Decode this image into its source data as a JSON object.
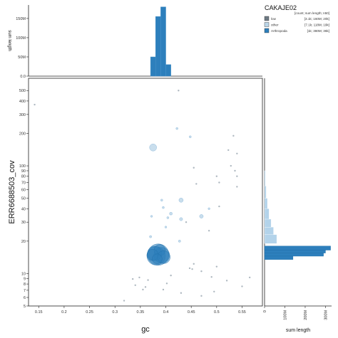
{
  "chart_data": {
    "type": "scatter",
    "xlabel": "gc",
    "ylabel": "ERR6688503_cov",
    "x_ticks": [
      "0.15",
      "0.2",
      "0.25",
      "0.3",
      "0.35",
      "0.4",
      "0.45",
      "0.5",
      "0.55"
    ],
    "x_tick_values": [
      0.15,
      0.2,
      0.25,
      0.3,
      0.35,
      0.4,
      0.45,
      0.5,
      0.55
    ],
    "xlim": [
      0.13,
      0.59
    ],
    "y_scale": "log",
    "ylim": [
      5,
      650
    ],
    "y_ticks": [
      "5",
      "6",
      "7",
      "8",
      "9",
      "10",
      "20",
      "30",
      "40",
      "50",
      "60",
      "70",
      "80",
      "90",
      "100",
      "200",
      "300",
      "400",
      "500"
    ],
    "y_tick_values": [
      5,
      6,
      7,
      8,
      9,
      10,
      20,
      30,
      40,
      50,
      60,
      70,
      80,
      90,
      100,
      200,
      300,
      400,
      500
    ],
    "top_hist": {
      "ylabel": "sum length",
      "y_ticks": [
        "0.0",
        "50M",
        "100M",
        "150M"
      ],
      "y_tick_values": [
        0,
        50000000,
        100000000,
        150000000
      ],
      "ylim": [
        0,
        185000000
      ],
      "bins_gc": [
        0.37,
        0.38,
        0.39,
        0.4
      ],
      "bin_width": 0.01,
      "values": [
        50000000,
        155000000,
        180000000,
        30000000
      ]
    },
    "right_hist": {
      "xlabel": "sum length",
      "x_ticks": [
        "0",
        "100M",
        "200M",
        "300M"
      ],
      "x_tick_values": [
        0,
        100000000,
        200000000,
        300000000
      ],
      "xlim": [
        0,
        330000000
      ],
      "light_bins": [
        {
          "cov": [
            19,
            23
          ],
          "value": 60000000
        },
        {
          "cov": [
            23,
            27
          ],
          "value": 44000000
        },
        {
          "cov": [
            27,
            32
          ],
          "value": 32000000
        },
        {
          "cov": [
            32,
            40
          ],
          "value": 22000000
        },
        {
          "cov": [
            40,
            50
          ],
          "value": 14000000
        },
        {
          "cov": [
            50,
            65
          ],
          "value": 8000000
        },
        {
          "cov": [
            65,
            90
          ],
          "value": 4000000
        }
      ],
      "dark_bins": [
        {
          "cov": [
            16.5,
            18
          ],
          "value": 325000000
        },
        {
          "cov": [
            15.5,
            16.5
          ],
          "value": 300000000
        },
        {
          "cov": [
            14.5,
            15.5
          ],
          "value": 290000000
        },
        {
          "cov": [
            13.5,
            14.5
          ],
          "value": 140000000
        }
      ]
    },
    "legend": {
      "title": "CAKAJE02",
      "header": "[count; sum length; n50]",
      "entries": [
        {
          "name": "low",
          "stats": "[3.1k; 160M; 20k]",
          "color": "#6e7a84"
        },
        {
          "name": "other",
          "stats": "[7.1k; 118M; 19k]",
          "color": "#bcd6e8"
        },
        {
          "name": "Arthropoda",
          "stats": "[1k; 380M; 36k]",
          "color": "#2d7fbc"
        }
      ]
    },
    "series": [
      {
        "name": "Arthropoda",
        "color": "#2d7fbc",
        "points": [
          {
            "x": 0.385,
            "y": 15.0,
            "r": 15
          },
          {
            "x": 0.381,
            "y": 14.6,
            "r": 13
          },
          {
            "x": 0.392,
            "y": 14.8,
            "r": 11
          },
          {
            "x": 0.378,
            "y": 15.4,
            "r": 10
          },
          {
            "x": 0.388,
            "y": 16.5,
            "r": 8
          },
          {
            "x": 0.396,
            "y": 14.2,
            "r": 9
          },
          {
            "x": 0.374,
            "y": 14.9,
            "r": 8
          },
          {
            "x": 0.383,
            "y": 13.7,
            "r": 7
          }
        ]
      },
      {
        "name": "other",
        "color": "#9cc3df",
        "points": [
          {
            "x": 0.375,
            "y": 148,
            "r": 5
          },
          {
            "x": 0.43,
            "y": 48,
            "r": 3
          },
          {
            "x": 0.47,
            "y": 34,
            "r": 2.6
          },
          {
            "x": 0.41,
            "y": 36,
            "r": 2
          },
          {
            "x": 0.43,
            "y": 32,
            "r": 2.2
          },
          {
            "x": 0.422,
            "y": 222,
            "r": 1.5
          },
          {
            "x": 0.448,
            "y": 186,
            "r": 1.5
          },
          {
            "x": 0.427,
            "y": 20,
            "r": 1.6
          },
          {
            "x": 0.485,
            "y": 40,
            "r": 1.4
          },
          {
            "x": 0.37,
            "y": 22,
            "r": 1.6
          },
          {
            "x": 0.392,
            "y": 48,
            "r": 1.5
          },
          {
            "x": 0.395,
            "y": 41,
            "r": 1.5
          },
          {
            "x": 0.4,
            "y": 27,
            "r": 1.4
          },
          {
            "x": 0.372,
            "y": 34,
            "r": 1.4
          },
          {
            "x": 0.404,
            "y": 33,
            "r": 1.5
          }
        ]
      },
      {
        "name": "low",
        "color": "#9aa6b0",
        "points": [
          {
            "x": 0.142,
            "y": 370,
            "r": 1.2
          },
          {
            "x": 0.425,
            "y": 500,
            "r": 1.2
          },
          {
            "x": 0.533,
            "y": 190,
            "r": 1.2
          },
          {
            "x": 0.523,
            "y": 140,
            "r": 1.2
          },
          {
            "x": 0.54,
            "y": 130,
            "r": 1.2
          },
          {
            "x": 0.528,
            "y": 100,
            "r": 1.2
          },
          {
            "x": 0.536,
            "y": 90,
            "r": 1.2
          },
          {
            "x": 0.54,
            "y": 80,
            "r": 1.2
          },
          {
            "x": 0.5,
            "y": 80,
            "r": 1.2
          },
          {
            "x": 0.505,
            "y": 70,
            "r": 1.2
          },
          {
            "x": 0.54,
            "y": 64,
            "r": 1.2
          },
          {
            "x": 0.46,
            "y": 68,
            "r": 1.2
          },
          {
            "x": 0.455,
            "y": 96,
            "r": 1.2
          },
          {
            "x": 0.505,
            "y": 42,
            "r": 1.2
          },
          {
            "x": 0.44,
            "y": 30,
            "r": 1.2
          },
          {
            "x": 0.485,
            "y": 25,
            "r": 1.2
          },
          {
            "x": 0.565,
            "y": 9.2,
            "r": 1.2
          },
          {
            "x": 0.55,
            "y": 7.6,
            "r": 1.2
          },
          {
            "x": 0.52,
            "y": 8.6,
            "r": 1.2
          },
          {
            "x": 0.318,
            "y": 5.6,
            "r": 1.2
          },
          {
            "x": 0.36,
            "y": 7.5,
            "r": 1.2
          },
          {
            "x": 0.355,
            "y": 7.1,
            "r": 1.2
          },
          {
            "x": 0.34,
            "y": 7.8,
            "r": 1.2
          },
          {
            "x": 0.365,
            "y": 8.7,
            "r": 1.2
          },
          {
            "x": 0.47,
            "y": 6.2,
            "r": 1.2
          },
          {
            "x": 0.43,
            "y": 6.6,
            "r": 1.2
          },
          {
            "x": 0.447,
            "y": 11.2,
            "r": 1.2
          },
          {
            "x": 0.455,
            "y": 12.3,
            "r": 1.2
          },
          {
            "x": 0.47,
            "y": 10.5,
            "r": 1.2
          },
          {
            "x": 0.49,
            "y": 9.3,
            "r": 1.2
          },
          {
            "x": 0.5,
            "y": 11.6,
            "r": 1.2
          },
          {
            "x": 0.41,
            "y": 9.6,
            "r": 1.2
          },
          {
            "x": 0.402,
            "y": 8.1,
            "r": 1.2
          },
          {
            "x": 0.395,
            "y": 7.1,
            "r": 1.2
          },
          {
            "x": 0.348,
            "y": 9.2,
            "r": 1.2
          },
          {
            "x": 0.335,
            "y": 8.9,
            "r": 1.2
          },
          {
            "x": 0.452,
            "y": 11.0,
            "r": 1.2
          },
          {
            "x": 0.495,
            "y": 6.8,
            "r": 1.2
          }
        ]
      }
    ]
  }
}
